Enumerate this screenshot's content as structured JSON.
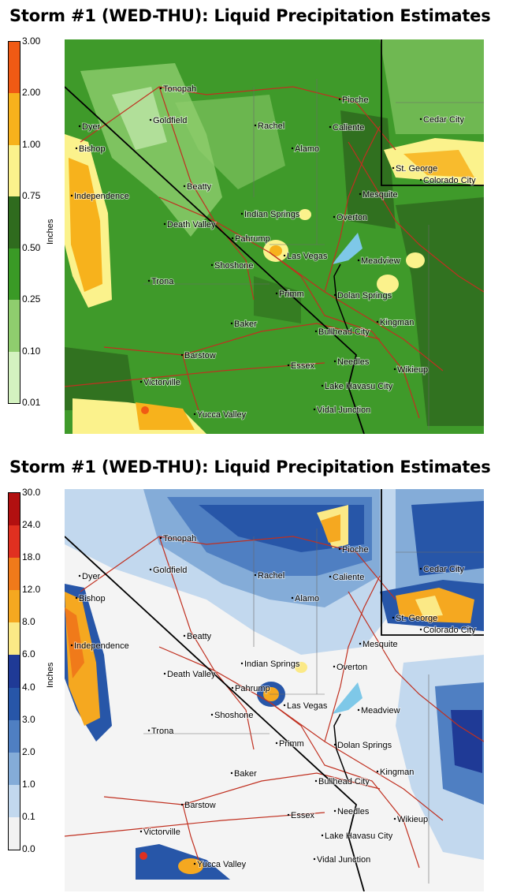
{
  "panels": [
    {
      "title": "Storm #1 (WED-THU): Liquid Precipitation Estimates",
      "units": "Inches",
      "legend": [
        {
          "label": "3.00",
          "color": "#f05a14"
        },
        {
          "label": "2.00",
          "color": "#f7b21c"
        },
        {
          "label": "1.00",
          "color": "#fbf28c"
        },
        {
          "label": "0.75",
          "color": "#2f6b1e"
        },
        {
          "label": "0.50",
          "color": "#3a9a26"
        },
        {
          "label": "0.25",
          "color": "#8fcd6e"
        },
        {
          "label": "0.10",
          "color": "#d4f2c0"
        },
        {
          "label": "0.01",
          "color": "#ffffff"
        }
      ]
    },
    {
      "title": "Storm #1 (WED-THU): Liquid Precipitation Estimates",
      "units": "Inches",
      "legend": [
        {
          "label": "30.0",
          "color": "#b21010"
        },
        {
          "label": "24.0",
          "color": "#e03020"
        },
        {
          "label": "18.0",
          "color": "#f07a1a"
        },
        {
          "label": "12.0",
          "color": "#f5a820"
        },
        {
          "label": "8.0",
          "color": "#fbe986"
        },
        {
          "label": "6.0",
          "color": "#1f3a96"
        },
        {
          "label": "4.0",
          "color": "#2756a8"
        },
        {
          "label": "3.0",
          "color": "#4f7fc2"
        },
        {
          "label": "2.0",
          "color": "#84acd8"
        },
        {
          "label": "1.0",
          "color": "#c2d8ee"
        },
        {
          "label": "0.1",
          "color": "#f2f2f2"
        },
        {
          "label": "0.0",
          "color": "#ffffff"
        }
      ]
    }
  ],
  "places": [
    "Tonopah",
    "Goldfield",
    "Dyer",
    "Bishop",
    "Independence",
    "Beatty",
    "Death Valley",
    "Rachel",
    "Pioche",
    "Caliente",
    "Alamo",
    "Cedar City",
    "St. George",
    "Colorado City",
    "Mesquite",
    "Indian Springs",
    "Overton",
    "Pahrump",
    "Las Vegas",
    "Shoshone",
    "Meadview",
    "Trona",
    "Primm",
    "Dolan Springs",
    "Kingman",
    "Baker",
    "Bullhead City",
    "Barstow",
    "Essex",
    "Needles",
    "Wikieup",
    "Victorville",
    "Lake Havasu City",
    "Yucca Valley",
    "Vidal Junction"
  ],
  "colors": {
    "map1_base": "#3f9a2a",
    "map2_base": "#f4f4f4",
    "roads": "#c03020",
    "borders": "#000000",
    "water": "#7ec8e8"
  }
}
